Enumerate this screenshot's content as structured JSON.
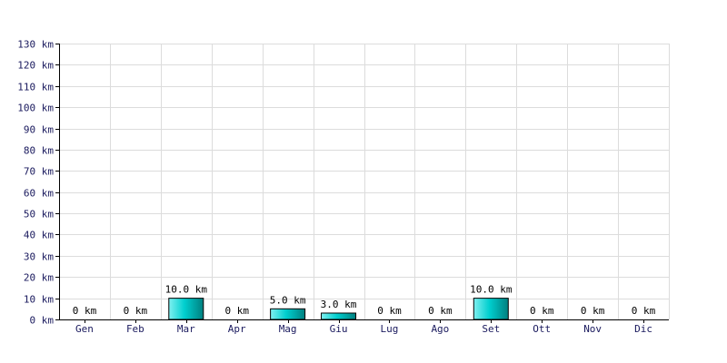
{
  "chart_data": {
    "type": "bar",
    "title": "",
    "xlabel": "",
    "ylabel": "",
    "categories": [
      "Gen",
      "Feb",
      "Mar",
      "Apr",
      "Mag",
      "Giu",
      "Lug",
      "Ago",
      "Set",
      "Ott",
      "Nov",
      "Dic"
    ],
    "values": [
      0,
      0,
      10,
      0,
      5,
      3,
      0,
      0,
      10,
      0,
      0,
      0
    ],
    "data_labels": [
      "0 km",
      "0 km",
      "10.0 km",
      "0 km",
      "5.0 km",
      "3.0 km",
      "0 km",
      "0 km",
      "10.0 km",
      "0 km",
      "0 km",
      "0 km"
    ],
    "ylim": [
      0,
      130
    ],
    "y_ticks": [
      0,
      10,
      20,
      30,
      40,
      50,
      60,
      70,
      80,
      90,
      100,
      110,
      120,
      130
    ],
    "y_tick_labels": [
      "0 km",
      "10 km",
      "20 km",
      "30 km",
      "40 km",
      "50 km",
      "60 km",
      "70 km",
      "80 km",
      "90 km",
      "100 km",
      "110 km",
      "120 km",
      "130 km"
    ],
    "grid": true,
    "legend": "none",
    "colors": {
      "bar_light": "#7ff0f0",
      "bar_mid": "#00cfcf",
      "bar_dark": "#007f7f",
      "bar_edge": "#000000",
      "grid": "#dcdcdc",
      "axis": "#000000",
      "tick_text": "#1a1a5e"
    }
  }
}
